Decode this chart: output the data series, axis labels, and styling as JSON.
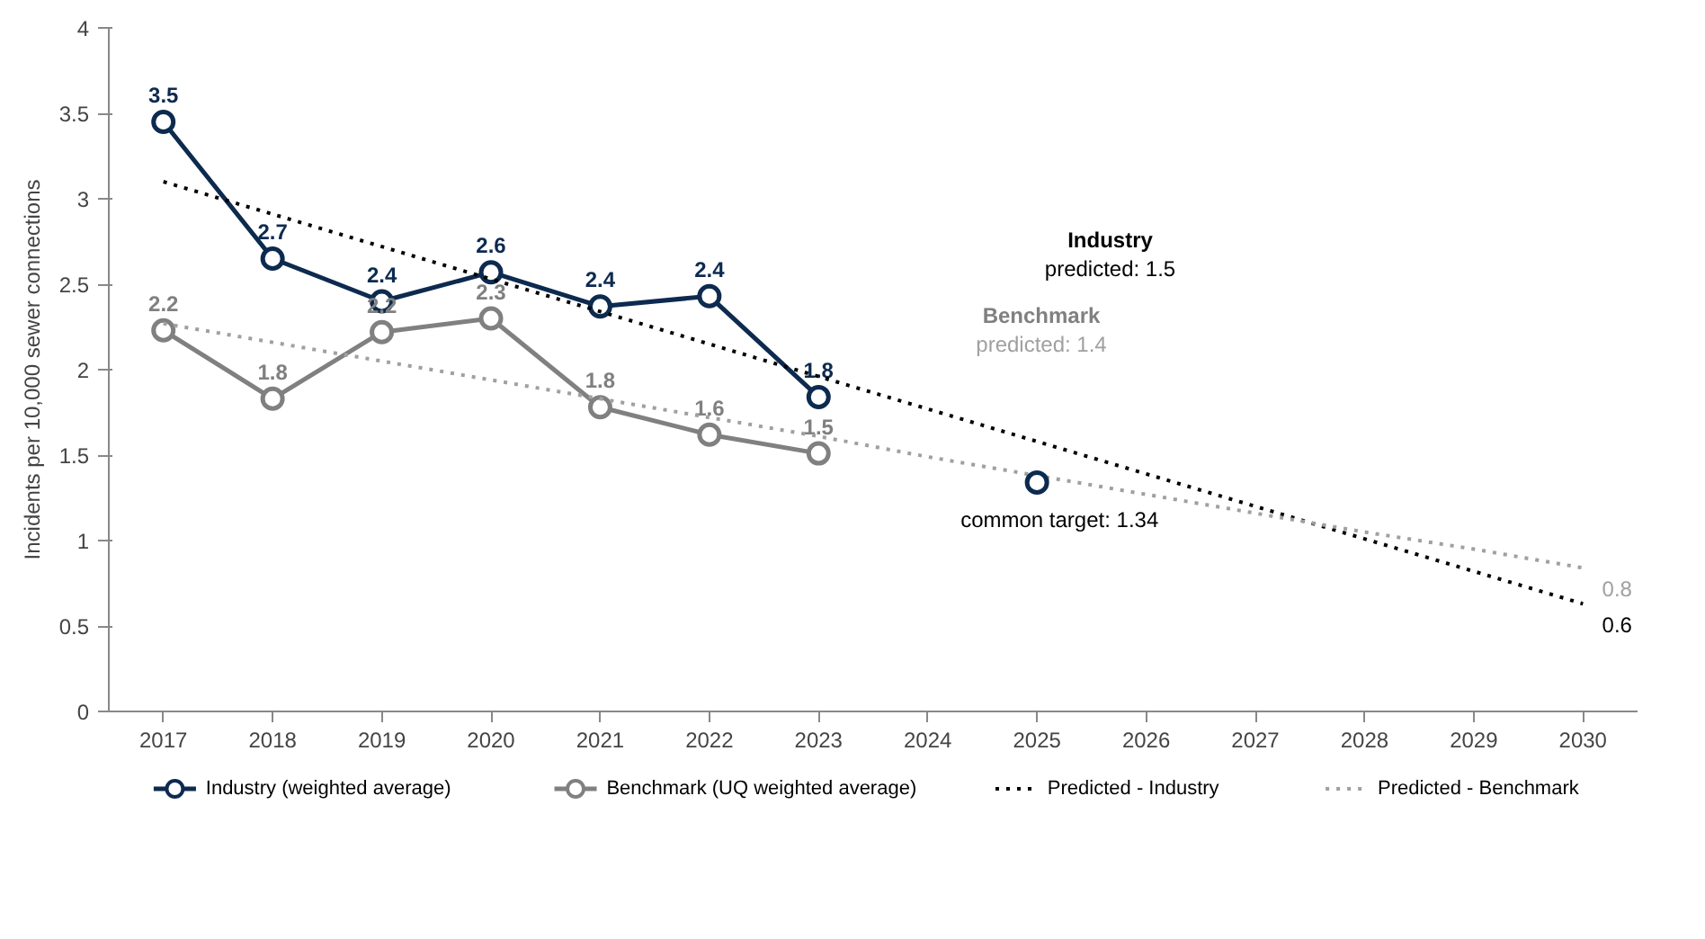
{
  "chart_data": {
    "type": "line",
    "ylabel": "Incidents per 10,000 sewer connections",
    "categories": [
      "2017",
      "2018",
      "2019",
      "2020",
      "2021",
      "2022",
      "2023",
      "2024",
      "2025",
      "2026",
      "2027",
      "2028",
      "2029",
      "2030"
    ],
    "ylim": [
      0,
      4
    ],
    "yticks": [
      0,
      0.5,
      1,
      1.5,
      2,
      2.5,
      3,
      3.5,
      4
    ],
    "grid": false,
    "legend": "bottom",
    "series": [
      {
        "name": "Industry (weighted average)",
        "color": "#0d2a4f",
        "marker": "circle",
        "line_style": "solid",
        "values": [
          3.45,
          2.65,
          2.4,
          2.57,
          2.37,
          2.43,
          1.84,
          null,
          null,
          null,
          null,
          null,
          null,
          null
        ],
        "value_labels": [
          "3.5",
          "2.7",
          "2.4",
          "2.6",
          "2.4",
          "2.4",
          "1.8",
          null,
          null,
          null,
          null,
          null,
          null,
          null
        ]
      },
      {
        "name": "Benchmark (UQ weighted average)",
        "color": "#808080",
        "marker": "circle",
        "line_style": "solid",
        "values": [
          2.23,
          1.83,
          2.22,
          2.3,
          1.78,
          1.62,
          1.51,
          null,
          null,
          null,
          null,
          null,
          null,
          null
        ],
        "value_labels": [
          "2.2",
          "1.8",
          "2.2",
          "2.3",
          "1.8",
          "1.6",
          "1.5",
          null,
          null,
          null,
          null,
          null,
          null,
          null
        ]
      },
      {
        "name": "Predicted - Industry",
        "color": "#000000",
        "marker": "none",
        "line_style": "dotted",
        "values": [
          3.1,
          2.91,
          2.72,
          2.53,
          2.34,
          2.15,
          1.96,
          1.77,
          1.58,
          1.39,
          1.2,
          1.01,
          0.82,
          0.63
        ],
        "value_labels": [
          null,
          null,
          null,
          null,
          null,
          null,
          null,
          null,
          null,
          null,
          null,
          null,
          null,
          "0.6"
        ]
      },
      {
        "name": "Predicted - Benchmark",
        "color": "#a0a0a0",
        "marker": "none",
        "line_style": "dotted",
        "values": [
          2.27,
          2.16,
          2.05,
          1.94,
          1.83,
          1.72,
          1.61,
          1.49,
          1.38,
          1.27,
          1.16,
          1.05,
          0.95,
          0.84
        ],
        "value_labels": [
          null,
          null,
          null,
          null,
          null,
          null,
          null,
          null,
          null,
          null,
          null,
          null,
          null,
          "0.8"
        ]
      },
      {
        "type": "scatter",
        "color": "#0d2a4f",
        "marker": "circle",
        "values": [
          null,
          null,
          null,
          null,
          null,
          null,
          null,
          null,
          1.34,
          null,
          null,
          null,
          null,
          null
        ],
        "value_labels": [
          null,
          null,
          null,
          null,
          null,
          null,
          null,
          null,
          "common target: 1.34",
          null,
          null,
          null,
          null,
          null
        ]
      }
    ],
    "annotations": [
      "Industry",
      "predicted: 1.5",
      "Benchmark",
      "predicted: 1.4"
    ]
  }
}
